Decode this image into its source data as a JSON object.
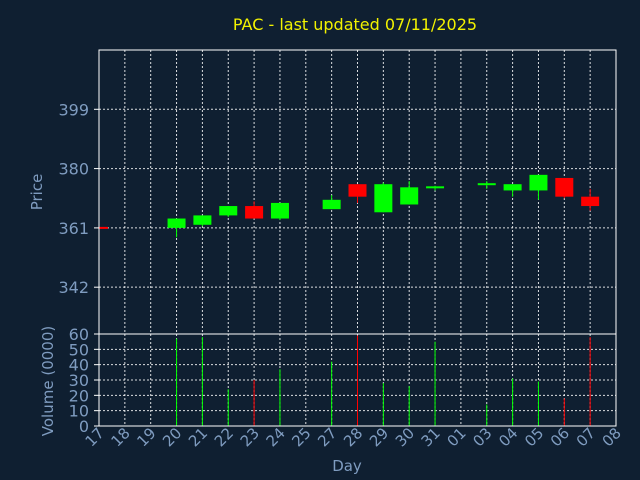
{
  "chart_data": {
    "type": "candlestick",
    "title": "PAC - last updated 07/11/2025",
    "xlabel": "Day",
    "price_panel": {
      "ylabel": "Price",
      "yticks": [
        342,
        361,
        380,
        399
      ],
      "ylim": [
        327,
        418
      ],
      "grid": true
    },
    "volume_panel": {
      "ylabel": "Volume (0000)",
      "yticks": [
        0,
        10,
        20,
        30,
        40,
        50,
        60
      ],
      "ylim": [
        0,
        60
      ],
      "grid": true
    },
    "x_labels": [
      "17",
      "18",
      "19",
      "20",
      "21",
      "22",
      "23",
      "24",
      "25",
      "27",
      "28",
      "29",
      "30",
      "31",
      "01",
      "03",
      "04",
      "05",
      "06",
      "07",
      "08"
    ],
    "candles": [
      {
        "day": "17",
        "open": 361.0,
        "high": 361.8,
        "low": 360.2,
        "close": 360.5,
        "volume": 0
      },
      {
        "day": "20",
        "open": 361.0,
        "high": 364.0,
        "low": 358.0,
        "close": 364.0,
        "volume": 57
      },
      {
        "day": "21",
        "open": 362.0,
        "high": 365.0,
        "low": 361.5,
        "close": 365.0,
        "volume": 58
      },
      {
        "day": "22",
        "open": 365.0,
        "high": 368.0,
        "low": 364.5,
        "close": 368.0,
        "volume": 24
      },
      {
        "day": "23",
        "open": 368.0,
        "high": 369.5,
        "low": 364.0,
        "close": 364.0,
        "volume": 30
      },
      {
        "day": "24",
        "open": 364.0,
        "high": 369.0,
        "low": 363.5,
        "close": 369.0,
        "volume": 37
      },
      {
        "day": "27",
        "open": 367.0,
        "high": 371.5,
        "low": 367.0,
        "close": 370.0,
        "volume": 42
      },
      {
        "day": "28",
        "open": 375.0,
        "high": 375.0,
        "low": 369.0,
        "close": 371.0,
        "volume": 59
      },
      {
        "day": "29",
        "open": 366.0,
        "high": 375.5,
        "low": 366.0,
        "close": 375.0,
        "volume": 28
      },
      {
        "day": "30",
        "open": 368.5,
        "high": 376.0,
        "low": 368.5,
        "close": 374.0,
        "volume": 26
      },
      {
        "day": "31",
        "open": 374.0,
        "high": 374.5,
        "low": 373.0,
        "close": 374.0,
        "volume": 55
      },
      {
        "day": "03",
        "open": 375.0,
        "high": 376.0,
        "low": 373.5,
        "close": 375.0,
        "volume": 14
      },
      {
        "day": "04",
        "open": 373.0,
        "high": 375.0,
        "low": 371.0,
        "close": 375.0,
        "volume": 31
      },
      {
        "day": "05",
        "open": 373.0,
        "high": 378.0,
        "low": 370.0,
        "close": 378.0,
        "volume": 29
      },
      {
        "day": "06",
        "open": 377.0,
        "high": 377.0,
        "low": 370.5,
        "close": 371.0,
        "volume": 18
      },
      {
        "day": "07",
        "open": 371.0,
        "high": 373.5,
        "low": 366.5,
        "close": 368.0,
        "volume": 58
      }
    ],
    "colors": {
      "up": "#00ff00",
      "down": "#ff0000",
      "background": "#0f1f31",
      "grid": "#ffffff",
      "title": "#f2f200",
      "text": "#7f9cc0"
    }
  }
}
